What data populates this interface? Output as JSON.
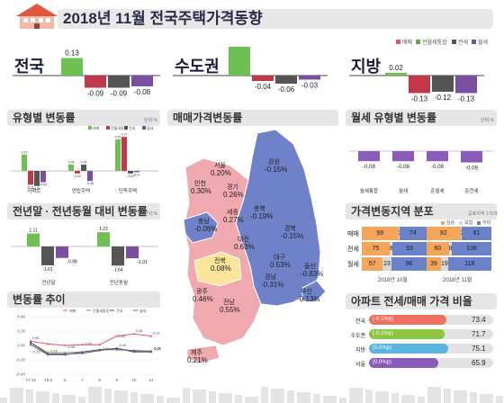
{
  "header": {
    "title": "2018년 11월 전국주택가격동향"
  },
  "legend_main": [
    {
      "label": "매매",
      "color": "#e05a6a"
    },
    {
      "label": "전월세통합",
      "color": "#6aa84f"
    },
    {
      "label": "전세",
      "color": "#555555"
    },
    {
      "label": "월세",
      "color": "#7b4fa0"
    }
  ],
  "top_summary": [
    {
      "region": "전국",
      "values": [
        0.13,
        -0.09,
        -0.09,
        -0.08
      ],
      "labels": [
        "0.13",
        "-0.09",
        "-0.09",
        "-0.08"
      ]
    },
    {
      "region": "수도권",
      "values": [
        0.25,
        -0.04,
        -0.06,
        -0.03
      ],
      "labels": [
        "0.25",
        "-0.04",
        "-0.06",
        "-0.03"
      ]
    },
    {
      "region": "지방",
      "values": [
        0.02,
        -0.13,
        -0.12,
        -0.13
      ],
      "labels": [
        "0.02",
        "-0.13",
        "-0.12",
        "-0.13"
      ]
    }
  ],
  "type_panel": {
    "title": "유형별 변동률",
    "unit": "단위:%",
    "legend": [
      "매매",
      "전월세통합",
      "전세",
      "월세"
    ],
    "chart_data": {
      "type": "bar",
      "categories": [
        "아파트",
        "연립주택",
        "단독주택"
      ],
      "series": [
        {
          "name": "매매",
          "values": [
            0.13,
            0.05,
            0.25
          ]
        },
        {
          "name": "전월세통합",
          "values": [
            -0.11,
            -0.02,
            0.27
          ]
        },
        {
          "name": "전세",
          "values": [
            -0.12,
            0.05,
            -0.02
          ]
        },
        {
          "name": "월세",
          "values": [
            -0.09,
            -0.08,
            -0.01
          ]
        }
      ],
      "labels": [
        [
          "0.13",
          "-0.11",
          "-0.12",
          "-0.09"
        ],
        [
          "0.05",
          "-0.02",
          "0.05",
          "-0.08"
        ],
        [
          "0.25",
          "0.27",
          "-0.02",
          "-0.01"
        ]
      ]
    }
  },
  "yoy_panel": {
    "title": "전년말 · 전년동월 대비 변동률",
    "unit": "단위:%",
    "chart_data": {
      "type": "bar",
      "categories": [
        "전년말",
        "전년동월"
      ],
      "series": [
        {
          "name": "매매",
          "values": [
            1.11,
            1.22
          ]
        },
        {
          "name": "전세",
          "values": [
            -1.61,
            -1.64
          ]
        },
        {
          "name": "월세",
          "values": [
            -0.98,
            -1.01
          ]
        }
      ],
      "labels": [
        [
          "1.11",
          "-1.61",
          "-0.98"
        ],
        [
          "1.22",
          "-1.64",
          "-1.01"
        ]
      ]
    }
  },
  "trend_panel": {
    "title": "변동률 추이",
    "legend": [
      "매매",
      "전월세통합",
      "전세",
      "월세"
    ],
    "chart_data": {
      "type": "line",
      "x": [
        "'17.12",
        "'18.5",
        "6",
        "7",
        "8",
        "9",
        "10",
        "11"
      ],
      "ylim": [
        -0.4,
        0.4
      ],
      "yticks": [
        "0.40",
        "0.20",
        "0.00",
        "-0.20",
        "-0.40"
      ],
      "series": [
        {
          "name": "매매",
          "values": [
            0.06,
            0.02,
            0.0,
            0.01,
            0.01,
            0.13,
            0.16,
            0.13
          ]
        },
        {
          "name": "전월세통합",
          "values": [
            0.04,
            -0.1,
            -0.1,
            -0.09,
            -0.06,
            -0.04,
            -0.08,
            -0.09
          ]
        },
        {
          "name": "전세",
          "values": [
            0.04,
            -0.12,
            -0.12,
            -0.11,
            -0.07,
            -0.04,
            -0.09,
            -0.09
          ]
        },
        {
          "name": "월세",
          "values": [
            0.01,
            -0.13,
            -0.13,
            -0.09,
            -0.06,
            -0.06,
            -0.07,
            -0.08
          ]
        }
      ],
      "point_labels": [
        "0.06",
        "-0.13",
        "-0.06",
        "-0.12",
        "-0.09",
        "-0.02",
        "0.09",
        "-0.04",
        "0.16",
        "0.13",
        "-0.08",
        "-0.09"
      ]
    }
  },
  "map_panel": {
    "title": "매매가격변동률",
    "regions": [
      {
        "name": "강원",
        "value": "-0.15%"
      },
      {
        "name": "서울",
        "value": "0.20%"
      },
      {
        "name": "인천",
        "value": "0.30%"
      },
      {
        "name": "경기",
        "value": "0.26%"
      },
      {
        "name": "세종",
        "value": "0.27%"
      },
      {
        "name": "충북",
        "value": "-0.19%"
      },
      {
        "name": "충남",
        "value": "-0.08%"
      },
      {
        "name": "대전",
        "value": "0.63%"
      },
      {
        "name": "경북",
        "value": "-0.15%"
      },
      {
        "name": "대구",
        "value": "0.53%"
      },
      {
        "name": "전북",
        "value": "0.08%"
      },
      {
        "name": "경남",
        "value": "-0.31%"
      },
      {
        "name": "울산",
        "value": "-0.83%"
      },
      {
        "name": "광주",
        "value": "0.46%"
      },
      {
        "name": "전남",
        "value": "0.55%"
      },
      {
        "name": "부산",
        "value": "-0.13%"
      },
      {
        "name": "제주",
        "value": "0.21%"
      }
    ]
  },
  "rent_panel": {
    "title": "월세 유형별 변동률",
    "unit": "단위:%",
    "chart_data": {
      "type": "bar",
      "categories": [
        "월세통합",
        "월세",
        "준월세",
        "준전세"
      ],
      "values": [
        -0.08,
        -0.08,
        -0.08,
        -0.09
      ],
      "labels": [
        "-0.08",
        "-0.08",
        "-0.08",
        "-0.09"
      ]
    }
  },
  "dist_panel": {
    "title": "가격변동지역 분포",
    "unit": "공표지역 176개",
    "legend": [
      "상승",
      "보합",
      "하락"
    ],
    "colors": [
      "#f5a55a",
      "#d8d8d8",
      "#6a82c8"
    ],
    "rows": [
      {
        "label": "매매",
        "prev": [
          99,
          3,
          74
        ],
        "curr": [
          92,
          3,
          81
        ]
      },
      {
        "label": "전세",
        "prev": [
          75,
          8,
          93
        ],
        "curr": [
          60,
          8,
          108
        ]
      },
      {
        "label": "월세",
        "prev": [
          57,
          23,
          96
        ],
        "curr": [
          39,
          19,
          118
        ]
      }
    ],
    "footer": [
      "2018년 10월",
      "2018년 11월"
    ]
  },
  "apt_panel": {
    "title": "아파트 전세/매매 가격 비율",
    "rows": [
      {
        "label": "전국",
        "change": "(-0.1%p)",
        "value": "73.4",
        "ratio": 73.4,
        "color": "#f07060"
      },
      {
        "label": "수도권",
        "change": "(-0.1%p)",
        "value": "71.7",
        "ratio": 71.7,
        "color": "#8cc63f"
      },
      {
        "label": "지방",
        "change": "(0.0%p)",
        "value": "75.1",
        "ratio": 75.1,
        "color": "#5ab4e0"
      },
      {
        "label": "서울",
        "change": "(0.0%p)",
        "value": "65.9",
        "ratio": 65.9,
        "color": "#8a5bb8"
      }
    ]
  }
}
